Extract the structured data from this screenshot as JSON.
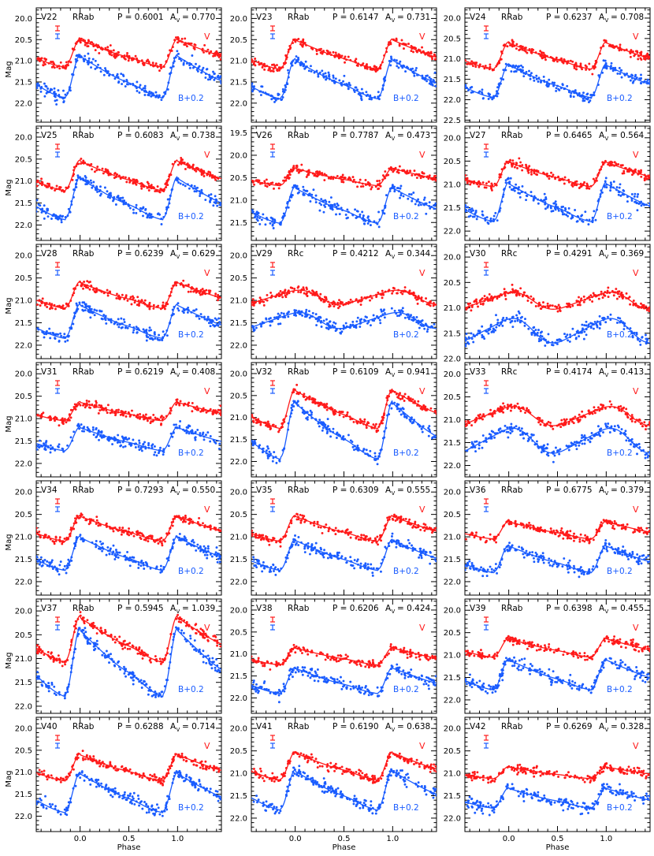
{
  "figure": {
    "xlabel": "Phase",
    "ylabel": "Mag",
    "x_ticks": [
      0.0,
      0.5,
      1.0
    ],
    "x_tick_labels": [
      "0.0",
      "0.5",
      "1.0"
    ],
    "xlim": [
      -0.45,
      1.45
    ],
    "v_label": "V",
    "b_label": "B+0.2",
    "colors": {
      "v": "#ff1a1a",
      "b": "#1a5cff",
      "axis": "#000000"
    }
  },
  "chart_data": [
    {
      "type": "scatter",
      "star": "V22",
      "class": "RRab",
      "period_text": "P = 0.6001",
      "amp_text": "A",
      "amp_sub": "V",
      "amp_value": "= 0.770",
      "ylim": [
        22.45,
        19.75
      ],
      "y_ticks": [
        "20.0",
        "20.5",
        "21.0",
        "21.5",
        "22.0"
      ],
      "v": {
        "min": 20.48,
        "max": 21.15
      },
      "b": {
        "min": 20.85,
        "max": 21.88
      }
    },
    {
      "type": "scatter",
      "star": "V23",
      "class": "RRab",
      "period_text": "P = 0.6147",
      "amp_text": "A",
      "amp_sub": "V",
      "amp_value": "= 0.731",
      "ylim": [
        22.45,
        19.75
      ],
      "y_ticks": [
        "20.0",
        "20.5",
        "21.0",
        "21.5",
        "22.0"
      ],
      "v": {
        "min": 20.48,
        "max": 21.2
      },
      "b": {
        "min": 20.95,
        "max": 21.9
      }
    },
    {
      "type": "scatter",
      "star": "V24",
      "class": "RRab",
      "period_text": "P = 0.6237",
      "amp_text": "A",
      "amp_sub": "V",
      "amp_value": "= 0.708",
      "ylim": [
        22.55,
        19.75
      ],
      "y_ticks": [
        "20.0",
        "20.5",
        "21.0",
        "21.5",
        "22.0",
        "22.5"
      ],
      "v": {
        "min": 20.58,
        "max": 21.25
      },
      "b": {
        "min": 21.12,
        "max": 21.95
      }
    },
    {
      "type": "scatter",
      "star": "V25",
      "class": "RRab",
      "period_text": "P = 0.6083",
      "amp_text": "A",
      "amp_sub": "V",
      "amp_value": "= 0.738",
      "ylim": [
        22.35,
        19.75
      ],
      "y_ticks": [
        "20.0",
        "20.5",
        "21.0",
        "21.5",
        "22.0"
      ],
      "v": {
        "min": 20.52,
        "max": 21.22
      },
      "b": {
        "min": 20.9,
        "max": 21.88
      }
    },
    {
      "type": "scatter",
      "star": "V26",
      "class": "RRab",
      "period_text": "P = 0.7787",
      "amp_text": "A",
      "amp_sub": "V",
      "amp_value": "= 0.473",
      "ylim": [
        21.9,
        19.35
      ],
      "y_ticks": [
        "19.5",
        "20.0",
        "20.5",
        "21.0",
        "21.5"
      ],
      "v": {
        "min": 20.28,
        "max": 20.68
      },
      "b": {
        "min": 20.7,
        "max": 21.52
      }
    },
    {
      "type": "scatter",
      "star": "V27",
      "class": "RRab",
      "period_text": "P = 0.6465",
      "amp_text": "A",
      "amp_sub": "V",
      "amp_value": "= 0.564",
      "ylim": [
        22.2,
        19.75
      ],
      "y_ticks": [
        "20.0",
        "20.5",
        "21.0",
        "21.5",
        "22.0"
      ],
      "v": {
        "min": 20.5,
        "max": 21.05
      },
      "b": {
        "min": 20.95,
        "max": 21.8
      }
    },
    {
      "type": "scatter",
      "star": "V28",
      "class": "RRab",
      "period_text": "P = 0.6239",
      "amp_text": "A",
      "amp_sub": "V",
      "amp_value": "= 0.629",
      "ylim": [
        22.3,
        19.75
      ],
      "y_ticks": [
        "20.0",
        "20.5",
        "21.0",
        "21.5",
        "22.0"
      ],
      "v": {
        "min": 20.58,
        "max": 21.18
      },
      "b": {
        "min": 21.08,
        "max": 21.85
      }
    },
    {
      "type": "scatter",
      "star": "V29",
      "class": "RRc",
      "period_text": "P = 0.4212",
      "amp_text": "A",
      "amp_sub": "V",
      "amp_value": "= 0.344",
      "ylim": [
        22.3,
        19.75
      ],
      "y_ticks": [
        "20.0",
        "20.5",
        "21.0",
        "21.5",
        "22.0"
      ],
      "v": {
        "min": 20.78,
        "max": 21.08
      },
      "b": {
        "min": 21.28,
        "max": 21.62
      }
    },
    {
      "type": "scatter",
      "star": "V30",
      "class": "RRc",
      "period_text": "P = 0.4291",
      "amp_text": "A",
      "amp_sub": "V",
      "amp_value": "= 0.369",
      "ylim": [
        22.0,
        19.75
      ],
      "y_ticks": [
        "20.0",
        "20.5",
        "21.0",
        "21.5",
        "22.0"
      ],
      "v": {
        "min": 20.7,
        "max": 21.02
      },
      "b": {
        "min": 21.22,
        "max": 21.68
      }
    },
    {
      "type": "scatter",
      "star": "V31",
      "class": "RRab",
      "period_text": "P = 0.6219",
      "amp_text": "A",
      "amp_sub": "V",
      "amp_value": "= 0.408",
      "ylim": [
        22.3,
        19.75
      ],
      "y_ticks": [
        "20.0",
        "20.5",
        "21.0",
        "21.5",
        "22.0"
      ],
      "v": {
        "min": 20.62,
        "max": 21.05
      },
      "b": {
        "min": 21.18,
        "max": 21.72
      }
    },
    {
      "type": "scatter",
      "star": "V32",
      "class": "RRab",
      "period_text": "P = 0.6109",
      "amp_text": "A",
      "amp_sub": "V",
      "amp_value": "= 0.941",
      "ylim": [
        22.35,
        19.75
      ],
      "y_ticks": [
        "20.0",
        "20.5",
        "21.0",
        "21.5",
        "22.0"
      ],
      "v": {
        "min": 20.35,
        "max": 21.25
      },
      "b": {
        "min": 20.62,
        "max": 21.95
      }
    },
    {
      "type": "scatter",
      "star": "V33",
      "class": "RRc",
      "period_text": "P = 0.4174",
      "amp_text": "A",
      "amp_sub": "V",
      "amp_value": "= 0.413",
      "ylim": [
        22.25,
        19.75
      ],
      "y_ticks": [
        "20.0",
        "20.5",
        "21.0",
        "21.5",
        "22.0"
      ],
      "v": {
        "min": 20.72,
        "max": 21.12
      },
      "b": {
        "min": 21.2,
        "max": 21.72
      }
    },
    {
      "type": "scatter",
      "star": "V34",
      "class": "RRab",
      "period_text": "P = 0.7293",
      "amp_text": "A",
      "amp_sub": "V",
      "amp_value": "= 0.550",
      "ylim": [
        22.3,
        19.75
      ],
      "y_ticks": [
        "20.0",
        "20.5",
        "21.0",
        "21.5",
        "22.0"
      ],
      "v": {
        "min": 20.52,
        "max": 21.1
      },
      "b": {
        "min": 20.98,
        "max": 21.75
      }
    },
    {
      "type": "scatter",
      "star": "V35",
      "class": "RRab",
      "period_text": "P = 0.6309",
      "amp_text": "A",
      "amp_sub": "V",
      "amp_value": "= 0.555",
      "ylim": [
        22.3,
        19.75
      ],
      "y_ticks": [
        "20.0",
        "20.5",
        "21.0",
        "21.5",
        "22.0"
      ],
      "v": {
        "min": 20.52,
        "max": 21.1
      },
      "b": {
        "min": 21.05,
        "max": 21.75
      }
    },
    {
      "type": "scatter",
      "star": "V36",
      "class": "RRab",
      "period_text": "P = 0.6775",
      "amp_text": "A",
      "amp_sub": "V",
      "amp_value": "= 0.379",
      "ylim": [
        22.3,
        19.75
      ],
      "y_ticks": [
        "20.0",
        "20.5",
        "21.0",
        "21.5",
        "22.0"
      ],
      "v": {
        "min": 20.65,
        "max": 21.05
      },
      "b": {
        "min": 21.18,
        "max": 21.8
      }
    },
    {
      "type": "scatter",
      "star": "V37",
      "class": "RRab",
      "period_text": "P = 0.5945",
      "amp_text": "A",
      "amp_sub": "V",
      "amp_value": "= 1.039",
      "ylim": [
        22.15,
        19.75
      ],
      "y_ticks": [
        "20.0",
        "20.5",
        "21.0",
        "21.5",
        "22.0"
      ],
      "v": {
        "min": 20.1,
        "max": 21.08
      },
      "b": {
        "min": 20.35,
        "max": 21.8
      }
    },
    {
      "type": "scatter",
      "star": "V38",
      "class": "RRab",
      "period_text": "P = 0.6206",
      "amp_text": "A",
      "amp_sub": "V",
      "amp_value": "= 0.424",
      "ylim": [
        22.35,
        19.75
      ],
      "y_ticks": [
        "20.0",
        "20.5",
        "21.0",
        "21.5",
        "22.0"
      ],
      "v": {
        "min": 20.85,
        "max": 21.25
      },
      "b": {
        "min": 21.3,
        "max": 21.9
      }
    },
    {
      "type": "scatter",
      "star": "V39",
      "class": "RRab",
      "period_text": "P = 0.6398",
      "amp_text": "A",
      "amp_sub": "V",
      "amp_value": "= 0.455",
      "ylim": [
        22.3,
        19.75
      ],
      "y_ticks": [
        "20.0",
        "20.5",
        "21.0",
        "21.5",
        "22.0"
      ],
      "v": {
        "min": 20.62,
        "max": 21.05
      },
      "b": {
        "min": 21.08,
        "max": 21.78
      }
    },
    {
      "type": "scatter",
      "star": "V40",
      "class": "RRab",
      "period_text": "P = 0.6288",
      "amp_text": "A",
      "amp_sub": "V",
      "amp_value": "= 0.714",
      "ylim": [
        22.35,
        19.75
      ],
      "y_ticks": [
        "20.0",
        "20.5",
        "21.0",
        "21.5",
        "22.0"
      ],
      "v": {
        "min": 20.58,
        "max": 21.2
      },
      "b": {
        "min": 21.0,
        "max": 21.92
      }
    },
    {
      "type": "scatter",
      "star": "V41",
      "class": "RRab",
      "period_text": "P = 0.6190",
      "amp_text": "A",
      "amp_sub": "V",
      "amp_value": "= 0.638",
      "ylim": [
        22.3,
        19.75
      ],
      "y_ticks": [
        "20.0",
        "20.5",
        "21.0",
        "21.5",
        "22.0"
      ],
      "v": {
        "min": 20.52,
        "max": 21.15
      },
      "b": {
        "min": 20.92,
        "max": 21.82
      }
    },
    {
      "type": "scatter",
      "star": "V42",
      "class": "RRab",
      "period_text": "P = 0.6269",
      "amp_text": "A",
      "amp_sub": "V",
      "amp_value": "= 0.328",
      "ylim": [
        22.3,
        19.75
      ],
      "y_ticks": [
        "20.0",
        "20.5",
        "21.0",
        "21.5",
        "22.0"
      ],
      "v": {
        "min": 20.85,
        "max": 21.12
      },
      "b": {
        "min": 21.32,
        "max": 21.78
      }
    }
  ]
}
